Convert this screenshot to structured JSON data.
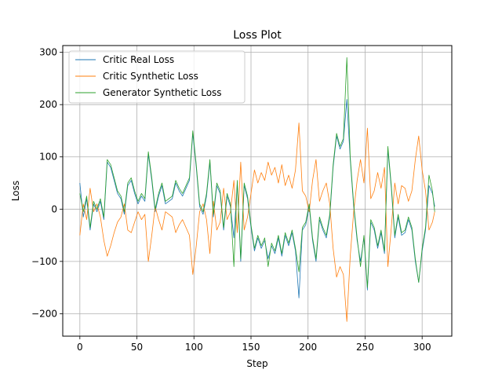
{
  "chart_data": {
    "type": "line",
    "title": "Loss Plot",
    "xlabel": "Step",
    "ylabel": "Loss",
    "xlim": [
      -15,
      326
    ],
    "ylim": [
      -243,
      313
    ],
    "xticks": [
      0,
      50,
      100,
      150,
      200,
      250,
      300
    ],
    "yticks": [
      -200,
      -100,
      0,
      100,
      200,
      300
    ],
    "xtick_labels": [
      "0",
      "50",
      "100",
      "150",
      "200",
      "250",
      "300"
    ],
    "ytick_labels": [
      "−200",
      "−100",
      "0",
      "100",
      "200",
      "300"
    ],
    "grid": true,
    "legend_position": "upper-left",
    "series": [
      {
        "name": "Critic Real Loss",
        "color": "#1f77b4",
        "x": [
          0,
          3,
          6,
          9,
          12,
          15,
          18,
          21,
          24,
          27,
          30,
          33,
          36,
          39,
          42,
          45,
          48,
          51,
          54,
          57,
          60,
          63,
          66,
          69,
          72,
          75,
          78,
          81,
          84,
          87,
          90,
          93,
          96,
          99,
          102,
          105,
          108,
          111,
          114,
          117,
          120,
          123,
          126,
          129,
          132,
          135,
          138,
          141,
          144,
          147,
          150,
          153,
          156,
          159,
          162,
          165,
          168,
          171,
          174,
          177,
          180,
          183,
          186,
          189,
          192,
          195,
          198,
          201,
          204,
          207,
          210,
          213,
          216,
          219,
          222,
          225,
          228,
          231,
          234,
          237,
          240,
          243,
          246,
          249,
          252,
          255,
          258,
          261,
          264,
          267,
          270,
          273,
          276,
          279,
          282,
          285,
          288,
          291,
          294,
          297,
          300,
          303,
          306,
          309,
          311
        ],
        "values": [
          50,
          -15,
          20,
          -40,
          10,
          -5,
          15,
          -20,
          90,
          80,
          55,
          30,
          20,
          -10,
          45,
          55,
          30,
          10,
          25,
          15,
          105,
          55,
          -5,
          25,
          45,
          10,
          15,
          20,
          50,
          35,
          25,
          40,
          55,
          145,
          80,
          5,
          -10,
          25,
          90,
          -15,
          45,
          30,
          -40,
          25,
          5,
          -55,
          50,
          -100,
          45,
          20,
          -35,
          -80,
          -55,
          -75,
          -60,
          -95,
          -70,
          -85,
          -55,
          -90,
          -50,
          -70,
          -45,
          -80,
          -170,
          -40,
          -30,
          5,
          -60,
          -100,
          -20,
          -40,
          -55,
          -15,
          80,
          140,
          115,
          130,
          210,
          95,
          5,
          -60,
          -100,
          -55,
          -155,
          -25,
          -40,
          -75,
          -45,
          -85,
          115,
          40,
          -55,
          -15,
          -50,
          -45,
          -20,
          -40,
          -100,
          -140,
          -80,
          -40,
          45,
          30,
          5
        ]
      },
      {
        "name": "Critic Synthetic Loss",
        "color": "#ff7f0e",
        "x": [
          0,
          3,
          6,
          9,
          12,
          15,
          18,
          21,
          24,
          27,
          30,
          33,
          36,
          39,
          42,
          45,
          48,
          51,
          54,
          57,
          60,
          63,
          66,
          69,
          72,
          75,
          78,
          81,
          84,
          87,
          90,
          93,
          96,
          99,
          102,
          105,
          108,
          111,
          114,
          117,
          120,
          123,
          126,
          129,
          132,
          135,
          138,
          141,
          144,
          147,
          150,
          153,
          156,
          159,
          162,
          165,
          168,
          171,
          174,
          177,
          180,
          183,
          186,
          189,
          192,
          195,
          198,
          201,
          204,
          207,
          210,
          213,
          216,
          219,
          222,
          225,
          228,
          231,
          234,
          237,
          240,
          243,
          246,
          249,
          252,
          255,
          258,
          261,
          264,
          267,
          270,
          273,
          276,
          279,
          282,
          285,
          288,
          291,
          294,
          297,
          300,
          303,
          306,
          309,
          311
        ],
        "values": [
          -50,
          10,
          -20,
          40,
          -5,
          10,
          -15,
          -60,
          -90,
          -70,
          -45,
          -25,
          -15,
          10,
          -40,
          -45,
          -25,
          -5,
          -20,
          -10,
          -100,
          -50,
          5,
          -20,
          -40,
          -5,
          -10,
          -15,
          -45,
          -30,
          -20,
          -35,
          -50,
          -125,
          -70,
          -5,
          10,
          -20,
          -85,
          15,
          -40,
          -25,
          40,
          -20,
          -5,
          55,
          -45,
          90,
          -40,
          -15,
          30,
          75,
          50,
          70,
          55,
          90,
          65,
          80,
          50,
          85,
          45,
          65,
          40,
          75,
          165,
          35,
          25,
          -5,
          55,
          95,
          15,
          35,
          50,
          10,
          -75,
          -130,
          -110,
          -125,
          -215,
          -90,
          -5,
          55,
          95,
          50,
          155,
          20,
          35,
          70,
          40,
          80,
          -110,
          -35,
          50,
          10,
          45,
          40,
          15,
          35,
          95,
          140,
          75,
          35,
          -40,
          -25,
          -5
        ]
      },
      {
        "name": "Generator Synthetic Loss",
        "color": "#2ca02c",
        "x": [
          0,
          3,
          6,
          9,
          12,
          15,
          18,
          21,
          24,
          27,
          30,
          33,
          36,
          39,
          42,
          45,
          48,
          51,
          54,
          57,
          60,
          63,
          66,
          69,
          72,
          75,
          78,
          81,
          84,
          87,
          90,
          93,
          96,
          99,
          102,
          105,
          108,
          111,
          114,
          117,
          120,
          123,
          126,
          129,
          132,
          135,
          138,
          141,
          144,
          147,
          150,
          153,
          156,
          159,
          162,
          165,
          168,
          171,
          174,
          177,
          180,
          183,
          186,
          189,
          192,
          195,
          198,
          201,
          204,
          207,
          210,
          213,
          216,
          219,
          222,
          225,
          228,
          231,
          234,
          237,
          240,
          243,
          246,
          249,
          252,
          255,
          258,
          261,
          264,
          267,
          270,
          273,
          276,
          279,
          282,
          285,
          288,
          291,
          294,
          297,
          300,
          303,
          306,
          309,
          311
        ],
        "values": [
          30,
          -5,
          25,
          -35,
          15,
          0,
          20,
          -15,
          95,
          85,
          60,
          35,
          25,
          -5,
          50,
          60,
          35,
          15,
          30,
          20,
          110,
          60,
          0,
          30,
          50,
          15,
          20,
          25,
          55,
          40,
          30,
          45,
          60,
          150,
          85,
          10,
          -5,
          30,
          95,
          -10,
          50,
          35,
          -35,
          30,
          10,
          -110,
          55,
          -95,
          50,
          25,
          -30,
          -75,
          -50,
          -70,
          -55,
          -110,
          -65,
          -80,
          -50,
          -85,
          -45,
          -65,
          -40,
          -75,
          -120,
          -35,
          -25,
          10,
          -55,
          -95,
          -15,
          -35,
          -50,
          -10,
          85,
          145,
          120,
          135,
          290,
          100,
          10,
          -55,
          -110,
          -50,
          -150,
          -20,
          -35,
          -70,
          -40,
          -80,
          120,
          45,
          -50,
          -10,
          -45,
          -40,
          -15,
          -35,
          -95,
          -140,
          -75,
          -35,
          65,
          35,
          -5
        ]
      }
    ]
  }
}
